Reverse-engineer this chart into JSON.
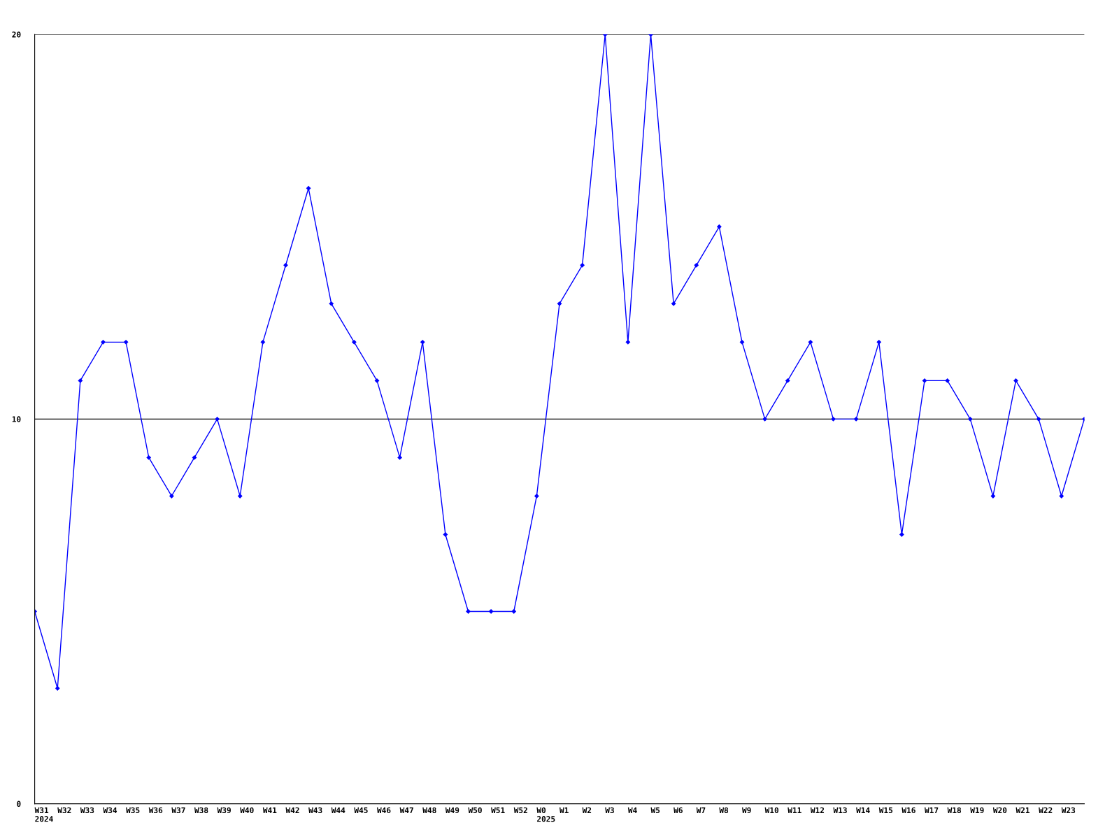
{
  "chart_data": {
    "type": "line",
    "categories": [
      "W31\n2024",
      "W32",
      "W33",
      "W34",
      "W35",
      "W36",
      "W37",
      "W38",
      "W39",
      "W40",
      "W41",
      "W42",
      "W43",
      "W44",
      "W45",
      "W46",
      "W47",
      "W48",
      "W49",
      "W50",
      "W51",
      "W52",
      "W0\n2025",
      "W1",
      "W2",
      "W3",
      "W4",
      "W5",
      "W6",
      "W7",
      "W8",
      "W9",
      "W10",
      "W11",
      "W12",
      "W13",
      "W14",
      "W15",
      "W16",
      "W17",
      "W18",
      "W19",
      "W20",
      "W21",
      "W22",
      "W23",
      null
    ],
    "series": [
      {
        "color": "#0000ff",
        "values": [
          5,
          3,
          11,
          12,
          12,
          9,
          8,
          9,
          10,
          8,
          12,
          14,
          16,
          13,
          12,
          11,
          9,
          12,
          7,
          5,
          5,
          5,
          8,
          13,
          14,
          20,
          12,
          20,
          13,
          14,
          15,
          12,
          10,
          11,
          12,
          10,
          10,
          12,
          7,
          11,
          11,
          10,
          8,
          11,
          10,
          8,
          10
        ]
      }
    ],
    "ylim": [
      0,
      20
    ],
    "yticks": [
      0,
      10,
      20
    ],
    "grid": "y",
    "marker": "diamond",
    "line_style": "solid"
  }
}
